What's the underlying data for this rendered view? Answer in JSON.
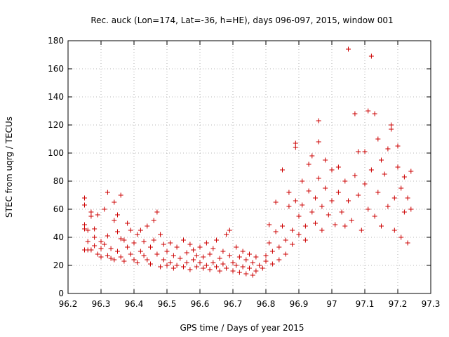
{
  "chart_data": {
    "type": "scatter",
    "title": "Rec. auck (Lon=174, Lat=-36, h=HE), days 096-097, 2015, window 001",
    "xlabel": "GPS time / Days of year 2015",
    "ylabel": "STEC from uqrg / TECUs",
    "xlim": [
      96.2,
      97.3
    ],
    "ylim": [
      0,
      180
    ],
    "x_ticks": [
      96.2,
      96.3,
      96.4,
      96.5,
      96.6,
      96.7,
      96.8,
      96.9,
      97.0,
      97.1,
      97.2,
      97.3
    ],
    "x_tick_labels": [
      "96.2",
      "96.3",
      "96.4",
      "96.5",
      "96.6",
      "96.7",
      "96.8",
      "96.9",
      "97",
      "97.1",
      "97.2",
      "97.3"
    ],
    "y_ticks": [
      0,
      20,
      40,
      60,
      80,
      100,
      120,
      140,
      160,
      180
    ],
    "y_tick_labels": [
      "0",
      "20",
      "40",
      "60",
      "80",
      "100",
      "120",
      "140",
      "160",
      "180"
    ],
    "grid": true,
    "marker": "plus",
    "color": "#cc0000",
    "points": [
      [
        96.25,
        68
      ],
      [
        96.25,
        63
      ],
      [
        96.25,
        49
      ],
      [
        96.25,
        46
      ],
      [
        96.25,
        31
      ],
      [
        96.26,
        31
      ],
      [
        96.26,
        37
      ],
      [
        96.26,
        45
      ],
      [
        96.27,
        58
      ],
      [
        96.27,
        55
      ],
      [
        96.27,
        31
      ],
      [
        96.28,
        40
      ],
      [
        96.28,
        46
      ],
      [
        96.28,
        34
      ],
      [
        96.29,
        28
      ],
      [
        96.29,
        56
      ],
      [
        96.3,
        37
      ],
      [
        96.3,
        32
      ],
      [
        96.3,
        26
      ],
      [
        96.31,
        60
      ],
      [
        96.31,
        35
      ],
      [
        96.32,
        72
      ],
      [
        96.32,
        27
      ],
      [
        96.32,
        41
      ],
      [
        96.33,
        25
      ],
      [
        96.33,
        32
      ],
      [
        96.34,
        65
      ],
      [
        96.34,
        52
      ],
      [
        96.34,
        24
      ],
      [
        96.35,
        56
      ],
      [
        96.35,
        44
      ],
      [
        96.35,
        30
      ],
      [
        96.36,
        70
      ],
      [
        96.36,
        26
      ],
      [
        96.36,
        39
      ],
      [
        96.37,
        38
      ],
      [
        96.37,
        23
      ],
      [
        96.38,
        50
      ],
      [
        96.38,
        33
      ],
      [
        96.39,
        28
      ],
      [
        96.39,
        45
      ],
      [
        96.4,
        24
      ],
      [
        96.4,
        36
      ],
      [
        96.41,
        42
      ],
      [
        96.41,
        22
      ],
      [
        96.42,
        30
      ],
      [
        96.42,
        45
      ],
      [
        96.43,
        27
      ],
      [
        96.43,
        37
      ],
      [
        96.44,
        24
      ],
      [
        96.44,
        48
      ],
      [
        96.45,
        33
      ],
      [
        96.45,
        21
      ],
      [
        96.46,
        52
      ],
      [
        96.46,
        38
      ],
      [
        96.47,
        58
      ],
      [
        96.47,
        28
      ],
      [
        96.48,
        19
      ],
      [
        96.48,
        42
      ],
      [
        96.49,
        35
      ],
      [
        96.49,
        24
      ],
      [
        96.5,
        30
      ],
      [
        96.5,
        20
      ],
      [
        96.51,
        36
      ],
      [
        96.51,
        22
      ],
      [
        96.52,
        27
      ],
      [
        96.52,
        18
      ],
      [
        96.53,
        33
      ],
      [
        96.53,
        20
      ],
      [
        96.54,
        25
      ],
      [
        96.55,
        38
      ],
      [
        96.55,
        19
      ],
      [
        96.56,
        29
      ],
      [
        96.56,
        22
      ],
      [
        96.57,
        35
      ],
      [
        96.57,
        17
      ],
      [
        96.58,
        24
      ],
      [
        96.58,
        31
      ],
      [
        96.59,
        19
      ],
      [
        96.59,
        27
      ],
      [
        96.6,
        22
      ],
      [
        96.6,
        33
      ],
      [
        96.61,
        18
      ],
      [
        96.61,
        26
      ],
      [
        96.62,
        36
      ],
      [
        96.62,
        20
      ],
      [
        96.63,
        28
      ],
      [
        96.63,
        17
      ],
      [
        96.64,
        32
      ],
      [
        96.64,
        22
      ],
      [
        96.65,
        19
      ],
      [
        96.65,
        38
      ],
      [
        96.66,
        25
      ],
      [
        96.66,
        16
      ],
      [
        96.67,
        30
      ],
      [
        96.67,
        21
      ],
      [
        96.68,
        42
      ],
      [
        96.68,
        18
      ],
      [
        96.69,
        27
      ],
      [
        96.69,
        45
      ],
      [
        96.7,
        22
      ],
      [
        96.7,
        16
      ],
      [
        96.71,
        33
      ],
      [
        96.71,
        20
      ],
      [
        96.72,
        26
      ],
      [
        96.72,
        15
      ],
      [
        96.73,
        30
      ],
      [
        96.73,
        19
      ],
      [
        96.74,
        24
      ],
      [
        96.74,
        14
      ],
      [
        96.75,
        28
      ],
      [
        96.75,
        18
      ],
      [
        96.76,
        22
      ],
      [
        96.76,
        13
      ],
      [
        96.77,
        26
      ],
      [
        96.77,
        16
      ],
      [
        96.78,
        20
      ],
      [
        96.79,
        18
      ],
      [
        96.8,
        23
      ],
      [
        96.8,
        27
      ],
      [
        96.81,
        36
      ],
      [
        96.81,
        49
      ],
      [
        96.82,
        30
      ],
      [
        96.82,
        21
      ],
      [
        96.83,
        44
      ],
      [
        96.83,
        65
      ],
      [
        96.84,
        33
      ],
      [
        96.84,
        24
      ],
      [
        96.85,
        88
      ],
      [
        96.85,
        48
      ],
      [
        96.86,
        38
      ],
      [
        96.86,
        28
      ],
      [
        96.87,
        62
      ],
      [
        96.87,
        72
      ],
      [
        96.88,
        45
      ],
      [
        96.88,
        35
      ],
      [
        96.89,
        107
      ],
      [
        96.89,
        104
      ],
      [
        96.89,
        66
      ],
      [
        96.9,
        55
      ],
      [
        96.9,
        42
      ],
      [
        96.91,
        80
      ],
      [
        96.91,
        63
      ],
      [
        96.92,
        48
      ],
      [
        96.92,
        38
      ],
      [
        96.93,
        92
      ],
      [
        96.93,
        73
      ],
      [
        96.94,
        98
      ],
      [
        96.94,
        58
      ],
      [
        96.95,
        68
      ],
      [
        96.95,
        50
      ],
      [
        96.96,
        123
      ],
      [
        96.96,
        108
      ],
      [
        96.96,
        82
      ],
      [
        96.97,
        62
      ],
      [
        96.97,
        45
      ],
      [
        96.98,
        95
      ],
      [
        96.98,
        75
      ],
      [
        96.99,
        56
      ],
      [
        97.0,
        88
      ],
      [
        97.0,
        66
      ],
      [
        97.01,
        49
      ],
      [
        97.02,
        90
      ],
      [
        97.02,
        72
      ],
      [
        97.03,
        58
      ],
      [
        97.04,
        80
      ],
      [
        97.04,
        48
      ],
      [
        97.05,
        174
      ],
      [
        97.05,
        66
      ],
      [
        97.06,
        52
      ],
      [
        97.07,
        128
      ],
      [
        97.07,
        84
      ],
      [
        97.08,
        101
      ],
      [
        97.08,
        70
      ],
      [
        97.09,
        45
      ],
      [
        97.1,
        101
      ],
      [
        97.1,
        78
      ],
      [
        97.11,
        130
      ],
      [
        97.11,
        60
      ],
      [
        97.12,
        169
      ],
      [
        97.12,
        88
      ],
      [
        97.13,
        128
      ],
      [
        97.13,
        55
      ],
      [
        97.14,
        110
      ],
      [
        97.14,
        72
      ],
      [
        97.15,
        95
      ],
      [
        97.15,
        48
      ],
      [
        97.16,
        85
      ],
      [
        97.17,
        103
      ],
      [
        97.17,
        62
      ],
      [
        97.18,
        120
      ],
      [
        97.18,
        117
      ],
      [
        97.19,
        68
      ],
      [
        97.19,
        45
      ],
      [
        97.2,
        105
      ],
      [
        97.2,
        90
      ],
      [
        97.21,
        75
      ],
      [
        97.21,
        40
      ],
      [
        97.22,
        83
      ],
      [
        97.22,
        58
      ],
      [
        97.23,
        68
      ],
      [
        97.23,
        36
      ],
      [
        97.24,
        87
      ],
      [
        97.24,
        60
      ]
    ]
  }
}
